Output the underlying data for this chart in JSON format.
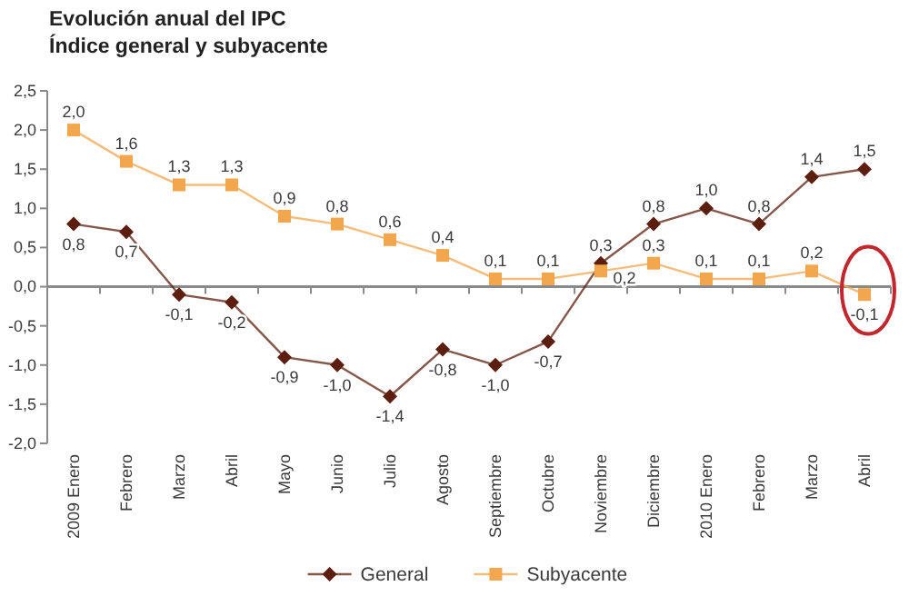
{
  "chart_data": {
    "type": "line",
    "title": "Evolución anual del IPC",
    "subtitle": "Índice general y subyacente",
    "categories": [
      "2009 Enero",
      "Febrero",
      "Marzo",
      "Abril",
      "Mayo",
      "Junio",
      "Julio",
      "Agosto",
      "Septiembre",
      "Octubre",
      "Noviembre",
      "Diciembre",
      "2010 Enero",
      "Febrero",
      "Marzo",
      "Abril"
    ],
    "series": [
      {
        "name": "General",
        "color": "#5c1f0f",
        "marker": "diamond",
        "values": [
          0.8,
          0.7,
          -0.1,
          -0.2,
          -0.9,
          -1.0,
          -1.4,
          -0.8,
          -1.0,
          -0.7,
          0.3,
          0.8,
          1.0,
          0.8,
          1.4,
          1.5
        ],
        "value_labels": [
          "0,8",
          "0,7",
          "-0,1",
          "-0,2",
          "-0,9",
          "-1,0",
          "-1,4",
          "-0,8",
          "-1,0",
          "-0,7",
          "0,3",
          "0,8",
          "1,0",
          "0,8",
          "1,4",
          "1,5"
        ]
      },
      {
        "name": "Subyacente",
        "color": "#f2a64e",
        "marker": "square",
        "values": [
          2.0,
          1.6,
          1.3,
          1.3,
          0.9,
          0.8,
          0.6,
          0.4,
          0.1,
          0.1,
          0.2,
          0.3,
          0.1,
          0.1,
          0.2,
          -0.1
        ],
        "value_labels": [
          "2,0",
          "1,6",
          "1,3",
          "1,3",
          "0,9",
          "0,8",
          "0,6",
          "0,4",
          "0,1",
          "0,1",
          "0,2",
          "0,3",
          "0,1",
          "0,1",
          "0,2",
          "-0,1"
        ]
      }
    ],
    "ylim": [
      -2.0,
      2.5
    ],
    "yticks": [
      {
        "value": -2.0,
        "label": "-2,0"
      },
      {
        "value": -1.5,
        "label": "-1,5"
      },
      {
        "value": -1.0,
        "label": "-1,0"
      },
      {
        "value": -0.5,
        "label": "-0,5"
      },
      {
        "value": 0,
        "label": "0,0"
      },
      {
        "value": 0.5,
        "label": "0,5"
      },
      {
        "value": 1.0,
        "label": "1,0"
      },
      {
        "value": 1.5,
        "label": "1,5"
      },
      {
        "value": 2.0,
        "label": "2,0"
      },
      {
        "value": 2.5,
        "label": "2,5"
      }
    ],
    "legend": "bottom"
  }
}
